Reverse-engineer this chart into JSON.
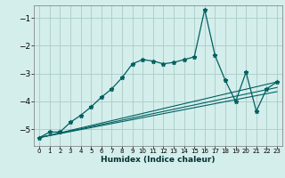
{
  "xlabel": "Humidex (Indice chaleur)",
  "ylabel": "",
  "bg_color": "#d4eeec",
  "grid_color": "#aaccc8",
  "line_color": "#006060",
  "xlim": [
    -0.5,
    23.5
  ],
  "ylim": [
    -5.6,
    -0.55
  ],
  "yticks": [
    -5,
    -4,
    -3,
    -2,
    -1
  ],
  "xticks": [
    0,
    1,
    2,
    3,
    4,
    5,
    6,
    7,
    8,
    9,
    10,
    11,
    12,
    13,
    14,
    15,
    16,
    17,
    18,
    19,
    20,
    21,
    22,
    23
  ],
  "main_series_x": [
    0,
    1,
    2,
    3,
    4,
    5,
    6,
    7,
    8,
    9,
    10,
    11,
    12,
    13,
    14,
    15,
    16,
    17,
    18,
    19,
    20,
    21,
    22,
    23
  ],
  "main_series_y": [
    -5.3,
    -5.1,
    -5.1,
    -4.75,
    -4.5,
    -4.2,
    -3.85,
    -3.55,
    -3.15,
    -2.65,
    -2.5,
    -2.55,
    -2.65,
    -2.6,
    -2.5,
    -2.4,
    -0.7,
    -2.35,
    -3.25,
    -4.0,
    -2.95,
    -4.35,
    -3.55,
    -3.3
  ],
  "line2_x": [
    0,
    23
  ],
  "line2_y": [
    -5.3,
    -3.3
  ],
  "line3_x": [
    0,
    23
  ],
  "line3_y": [
    -5.3,
    -3.5
  ],
  "line4_x": [
    0,
    23
  ],
  "line4_y": [
    -5.3,
    -3.65
  ]
}
